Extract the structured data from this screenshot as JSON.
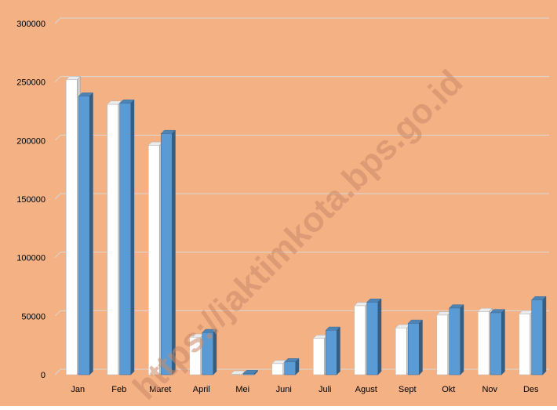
{
  "colors": {
    "background": "#F4B183",
    "series_1": "#FFFFFF",
    "series_2": "#5B9BD5",
    "gridline": "#D9D9D9"
  },
  "watermark": "https://jaktimkota.bps.go.id",
  "chart_data": {
    "type": "bar",
    "categories": [
      "Jan",
      "Feb",
      "Maret",
      "April",
      "Mei",
      "Juni",
      "Juli",
      "Agust",
      "Sept",
      "Okt",
      "Nov",
      "Des"
    ],
    "series": [
      {
        "values": [
          252000,
          231000,
          196000,
          32000,
          500,
          9500,
          31000,
          59000,
          40000,
          51000,
          54000,
          52000
        ]
      },
      {
        "values": [
          238000,
          232000,
          206000,
          36000,
          1000,
          11000,
          38000,
          62000,
          44000,
          57000,
          53000,
          64000
        ]
      }
    ],
    "y_ticks": [
      "0",
      "50000",
      "100000",
      "150000",
      "200000",
      "250000",
      "300000"
    ],
    "ylim": [
      0,
      300000
    ],
    "grid": true,
    "style": "3d-clustered-column"
  }
}
